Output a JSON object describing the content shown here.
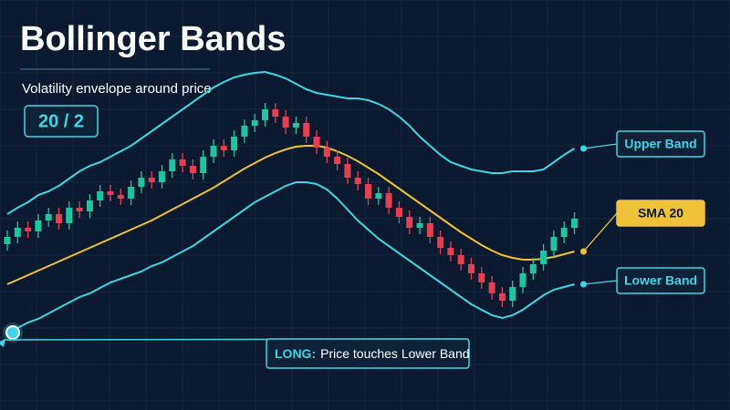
{
  "chart_data": {
    "type": "candlestick",
    "title": "Bollinger Bands",
    "subtitle": "Volatility envelope around price",
    "badge": "20 / 2",
    "up_color": "#22c49f",
    "down_color": "#e5404f",
    "open": [
      182,
      190,
      200,
      196,
      208,
      215,
      205,
      222,
      218,
      230,
      240,
      236,
      232,
      245,
      255,
      250,
      262,
      275,
      268,
      260,
      278,
      290,
      285,
      300,
      312,
      318,
      330,
      322,
      310,
      315,
      300,
      288,
      278,
      270,
      255,
      248,
      232,
      238,
      222,
      212,
      200,
      205,
      190,
      178,
      170,
      160,
      150,
      140,
      128,
      120,
      135,
      150,
      160,
      175,
      190,
      200
    ],
    "high": [
      197,
      207,
      207,
      215,
      222,
      222,
      229,
      229,
      237,
      247,
      247,
      243,
      252,
      262,
      262,
      269,
      282,
      282,
      275,
      285,
      297,
      297,
      307,
      319,
      325,
      337,
      337,
      329,
      322,
      322,
      307,
      295,
      285,
      277,
      262,
      255,
      245,
      245,
      229,
      219,
      212,
      212,
      197,
      185,
      177,
      167,
      157,
      147,
      135,
      142,
      157,
      167,
      182,
      197,
      207,
      217
    ],
    "low": [
      175,
      183,
      189,
      189,
      201,
      198,
      198,
      211,
      211,
      223,
      229,
      225,
      225,
      238,
      243,
      243,
      255,
      261,
      253,
      253,
      271,
      278,
      278,
      293,
      305,
      311,
      315,
      303,
      303,
      293,
      281,
      271,
      263,
      248,
      241,
      225,
      225,
      215,
      205,
      193,
      193,
      183,
      171,
      163,
      153,
      143,
      133,
      121,
      113,
      113,
      128,
      143,
      153,
      168,
      183,
      193
    ],
    "close": [
      190,
      200,
      196,
      208,
      215,
      205,
      222,
      218,
      230,
      240,
      236,
      232,
      245,
      255,
      250,
      262,
      275,
      268,
      260,
      278,
      290,
      285,
      300,
      312,
      318,
      330,
      322,
      310,
      315,
      300,
      288,
      278,
      270,
      255,
      248,
      232,
      238,
      222,
      212,
      200,
      205,
      190,
      178,
      170,
      160,
      150,
      140,
      128,
      120,
      135,
      150,
      160,
      175,
      190,
      200,
      210
    ],
    "bands": [
      {
        "name": "Upper Band",
        "color": "#3fd4e8",
        "values": [
          215,
          222,
          228,
          236,
          240,
          246,
          254,
          262,
          268,
          272,
          278,
          284,
          290,
          298,
          306,
          314,
          322,
          330,
          338,
          346,
          354,
          360,
          365,
          368,
          370,
          371,
          368,
          364,
          358,
          352,
          348,
          346,
          344,
          342,
          342,
          340,
          336,
          330,
          322,
          312,
          300,
          290,
          280,
          272,
          268,
          264,
          262,
          260,
          260,
          262,
          262,
          262,
          264,
          272,
          280,
          287
        ]
      },
      {
        "name": "SMA 20",
        "color": "#f0c23a",
        "values": [
          138,
          143,
          148,
          153,
          158,
          163,
          168,
          173,
          178,
          183,
          188,
          193,
          198,
          203,
          208,
          214,
          220,
          226,
          232,
          238,
          244,
          251,
          258,
          265,
          271,
          277,
          282,
          286,
          289,
          290,
          290,
          288,
          284,
          279,
          273,
          266,
          259,
          251,
          243,
          235,
          227,
          219,
          211,
          203,
          195,
          188,
          181,
          175,
          170,
          167,
          165,
          165,
          166,
          168,
          171,
          174
        ]
      },
      {
        "name": "Lower Band",
        "color": "#3fd4e8",
        "values": [
          85,
          90,
          96,
          100,
          106,
          112,
          118,
          124,
          128,
          134,
          140,
          144,
          148,
          152,
          158,
          162,
          168,
          174,
          180,
          188,
          196,
          204,
          212,
          220,
          228,
          234,
          240,
          246,
          250,
          250,
          248,
          242,
          232,
          220,
          208,
          198,
          188,
          180,
          172,
          164,
          156,
          148,
          140,
          132,
          124,
          116,
          110,
          104,
          101,
          104,
          110,
          118,
          126,
          132,
          135,
          138
        ]
      }
    ],
    "annotation": {
      "label": "LONG:",
      "text": "Price touches Lower Band"
    }
  }
}
